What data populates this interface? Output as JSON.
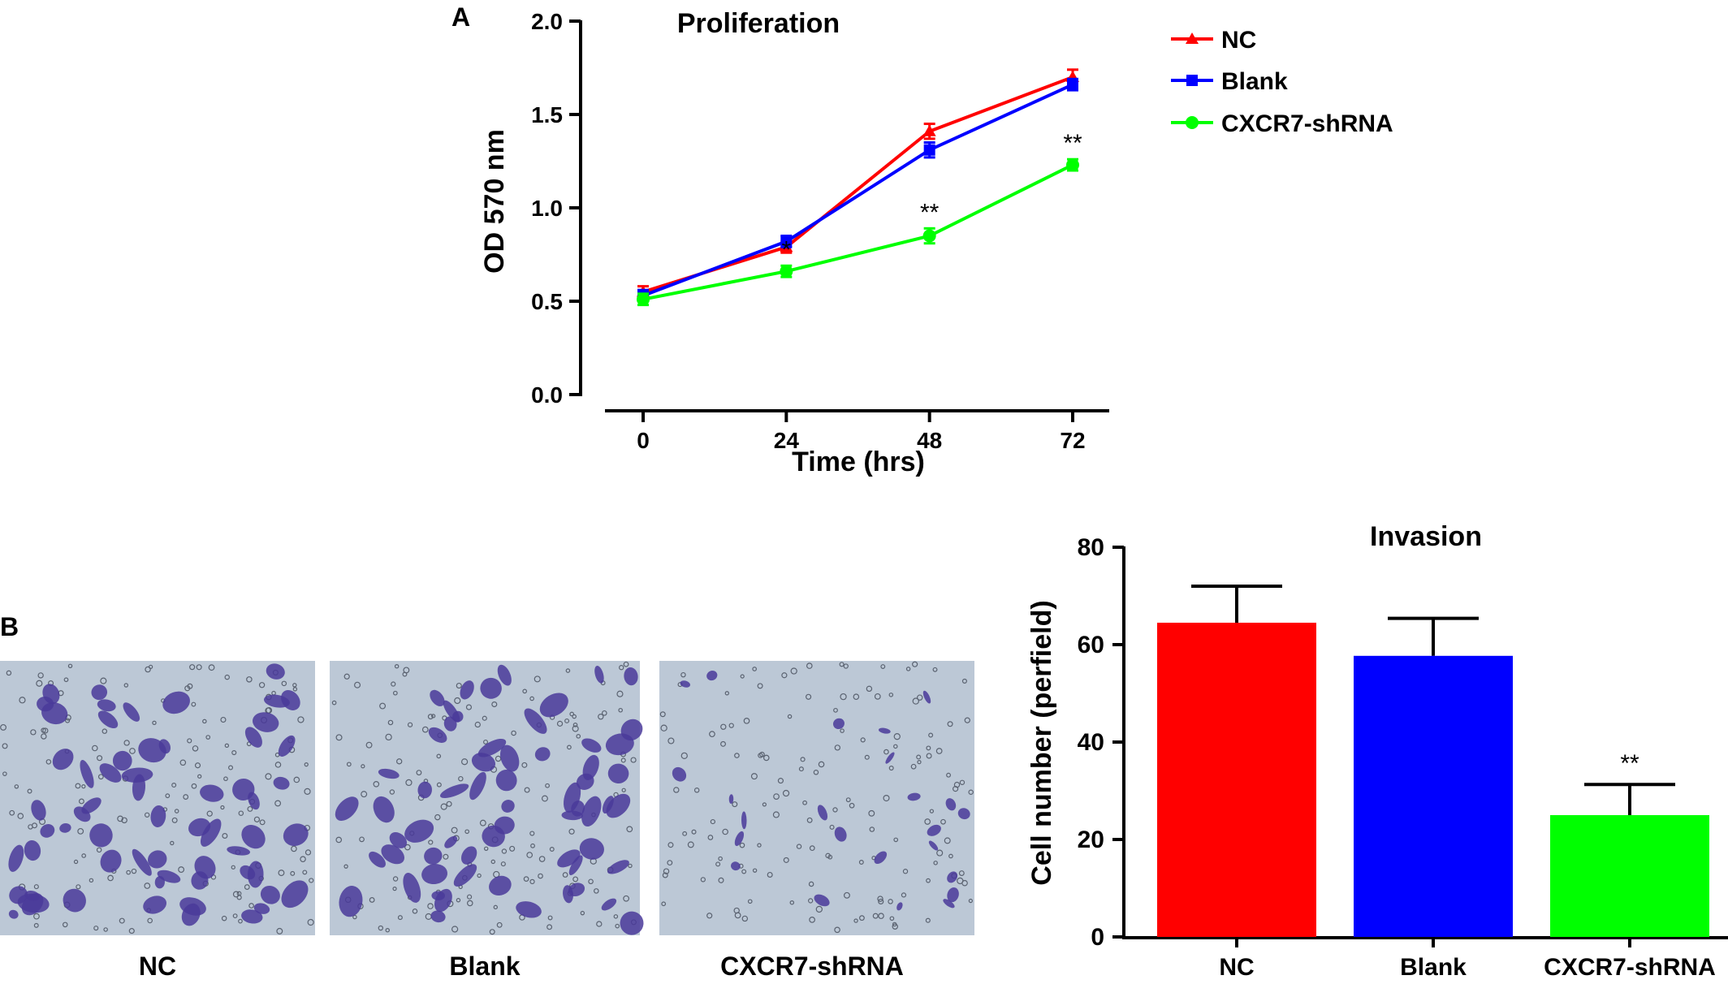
{
  "panels": {
    "A": {
      "label": "A"
    },
    "B": {
      "label": "B"
    }
  },
  "images": [
    {
      "name": "NC",
      "caption": "NC",
      "density": "high"
    },
    {
      "name": "Blank",
      "caption": "Blank",
      "density": "high"
    },
    {
      "name": "CXCR7-shRNA",
      "caption": "CXCR7-shRNA",
      "density": "low"
    }
  ],
  "colors": {
    "NC": "#ff0000",
    "Blank": "#0000ff",
    "CXCR7-shRNA": "#00ff00",
    "axis": "#000000",
    "stain": "#4a3a9a",
    "membrane": "#bcc8d6"
  },
  "chart_data": [
    {
      "type": "line",
      "title": "Proliferation",
      "xlabel": "Time (hrs)",
      "ylabel": "OD 570 nm",
      "x": [
        0,
        24,
        48,
        72
      ],
      "xticks": [
        "0",
        "24",
        "48",
        "72"
      ],
      "ylim": [
        0,
        2.0
      ],
      "yticks": [
        "0.0",
        "0.5",
        "1.0",
        "1.5",
        "2.0"
      ],
      "legend_position": "top-right outside",
      "series": [
        {
          "name": "NC",
          "values": [
            0.55,
            0.79,
            1.41,
            1.7
          ],
          "errors": [
            0.03,
            0.03,
            0.04,
            0.04
          ]
        },
        {
          "name": "Blank",
          "values": [
            0.53,
            0.82,
            1.31,
            1.66
          ],
          "errors": [
            0.03,
            0.03,
            0.04,
            0.03
          ]
        },
        {
          "name": "CXCR7-shRNA",
          "values": [
            0.51,
            0.66,
            0.85,
            1.23
          ],
          "errors": [
            0.03,
            0.03,
            0.04,
            0.03
          ]
        }
      ],
      "annotations": [
        {
          "x": 24,
          "text": "*"
        },
        {
          "x": 48,
          "text": "**"
        },
        {
          "x": 72,
          "text": "**"
        }
      ]
    },
    {
      "type": "bar",
      "title": "Invasion",
      "xlabel": "",
      "ylabel": "Cell number (perfield)",
      "categories": [
        "NC",
        "Blank",
        "CXCR7-shRNA"
      ],
      "values": [
        64.5,
        57.7,
        25.0
      ],
      "errors": [
        7.5,
        7.7,
        6.3
      ],
      "ylim": [
        0,
        80
      ],
      "yticks": [
        "0",
        "20",
        "40",
        "60",
        "80"
      ],
      "annotations": [
        {
          "category": "CXCR7-shRNA",
          "text": "**"
        }
      ]
    }
  ]
}
